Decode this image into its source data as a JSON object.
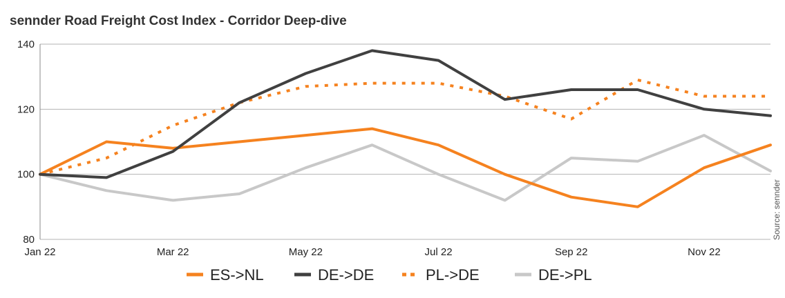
{
  "chart_data": {
    "type": "line",
    "title": "sennder Road Freight Cost Index - Corridor Deep-dive",
    "xlabel": "",
    "ylabel": "",
    "ylim": [
      80,
      140
    ],
    "yticks": [
      80,
      100,
      120,
      140
    ],
    "x": [
      "Jan 22",
      "Feb 22",
      "Mar 22",
      "Apr 22",
      "May 22",
      "Jun 22",
      "Jul 22",
      "Aug 22",
      "Sep 22",
      "Oct 22",
      "Nov 22",
      "Dec 22"
    ],
    "xtick_labels": [
      "Jan 22",
      "Mar 22",
      "May 22",
      "Jul 22",
      "Sep 22",
      "Nov 22"
    ],
    "grid": "horizontal",
    "legend_position": "bottom",
    "source": "Source: sennder",
    "series": [
      {
        "name": "ES->NL",
        "color": "#f5821f",
        "style": "solid",
        "values": [
          100,
          110,
          108,
          110,
          112,
          114,
          109,
          100,
          93,
          90,
          102,
          109
        ]
      },
      {
        "name": "DE->DE",
        "color": "#404040",
        "style": "solid",
        "values": [
          100,
          99,
          107,
          122,
          131,
          138,
          135,
          123,
          126,
          126,
          120,
          118
        ]
      },
      {
        "name": "PL->DE",
        "color": "#f5821f",
        "style": "dotted",
        "values": [
          100,
          105,
          115,
          122,
          127,
          128,
          128,
          124,
          117,
          129,
          124,
          124
        ]
      },
      {
        "name": "DE->PL",
        "color": "#c8c8c8",
        "style": "solid",
        "values": [
          100,
          95,
          92,
          94,
          102,
          109,
          100,
          92,
          105,
          104,
          112,
          101
        ]
      }
    ]
  }
}
